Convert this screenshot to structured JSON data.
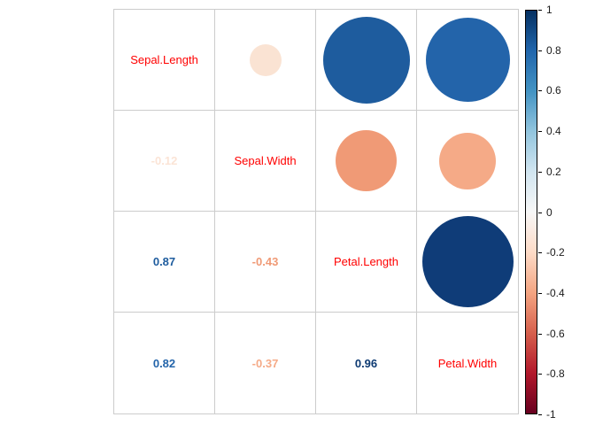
{
  "chart_data": {
    "type": "heatmap",
    "subtype": "correlation-matrix-mixed",
    "title": "",
    "variables": [
      "Sepal.Length",
      "Sepal.Width",
      "Petal.Length",
      "Petal.Width"
    ],
    "matrix": [
      [
        1,
        -0.12,
        0.87,
        0.82
      ],
      [
        -0.12,
        1,
        -0.43,
        -0.37
      ],
      [
        0.87,
        -0.43,
        1,
        0.96
      ],
      [
        0.82,
        -0.37,
        0.96,
        1
      ]
    ],
    "diagonal_label_color": "#ff0000",
    "grid_line_color": "#cccccc",
    "cells": [
      {
        "row": 0,
        "col": 0,
        "type": "label",
        "text": "Sepal.Length",
        "value": 1
      },
      {
        "row": 0,
        "col": 1,
        "type": "circle",
        "value": -0.12,
        "color": "#fae3d3",
        "diameter": 36
      },
      {
        "row": 0,
        "col": 2,
        "type": "circle",
        "value": 0.87,
        "color": "#1e5c9e",
        "diameter": 98
      },
      {
        "row": 0,
        "col": 3,
        "type": "circle",
        "value": 0.82,
        "color": "#2364aa",
        "diameter": 95
      },
      {
        "row": 1,
        "col": 0,
        "type": "number",
        "text": "-0.12",
        "value": -0.12,
        "color": "#fbe4d6"
      },
      {
        "row": 1,
        "col": 1,
        "type": "label",
        "text": "Sepal.Width",
        "value": 1
      },
      {
        "row": 1,
        "col": 2,
        "type": "circle",
        "value": -0.43,
        "color": "#f09a76",
        "diameter": 69
      },
      {
        "row": 1,
        "col": 3,
        "type": "circle",
        "value": -0.37,
        "color": "#f5aa87",
        "diameter": 64
      },
      {
        "row": 2,
        "col": 0,
        "type": "number",
        "text": "0.87",
        "value": 0.87,
        "color": "#1e5c9e"
      },
      {
        "row": 2,
        "col": 1,
        "type": "number",
        "text": "-0.43",
        "value": -0.43,
        "color": "#f09a76"
      },
      {
        "row": 2,
        "col": 2,
        "type": "label",
        "text": "Petal.Length",
        "value": 1
      },
      {
        "row": 2,
        "col": 3,
        "type": "circle",
        "value": 0.96,
        "color": "#0f3c78",
        "diameter": 103
      },
      {
        "row": 3,
        "col": 0,
        "type": "number",
        "text": "0.82",
        "value": 0.82,
        "color": "#2364aa"
      },
      {
        "row": 3,
        "col": 1,
        "type": "number",
        "text": "-0.37",
        "value": -0.37,
        "color": "#f5aa87"
      },
      {
        "row": 3,
        "col": 2,
        "type": "number",
        "text": "0.96",
        "value": 0.96,
        "color": "#0d3a72"
      },
      {
        "row": 3,
        "col": 3,
        "type": "label",
        "text": "Petal.Width",
        "value": 1
      }
    ],
    "colorbar": {
      "min": -1,
      "max": 1,
      "ticks": [
        1,
        0.8,
        0.6,
        0.4,
        0.2,
        0,
        -0.2,
        -0.4,
        -0.6,
        -0.8,
        -1
      ],
      "gradient": [
        "#053061",
        "#2166ac",
        "#4393c3",
        "#92c5de",
        "#d1e5f0",
        "#f7f7f7",
        "#fddbc7",
        "#f4a582",
        "#d6604d",
        "#b2182b",
        "#67001f"
      ],
      "legend_position": "right"
    },
    "layout": {
      "grid": true,
      "upper_triangle": "circles",
      "lower_triangle": "numbers",
      "diagonal": "variable-names"
    }
  }
}
